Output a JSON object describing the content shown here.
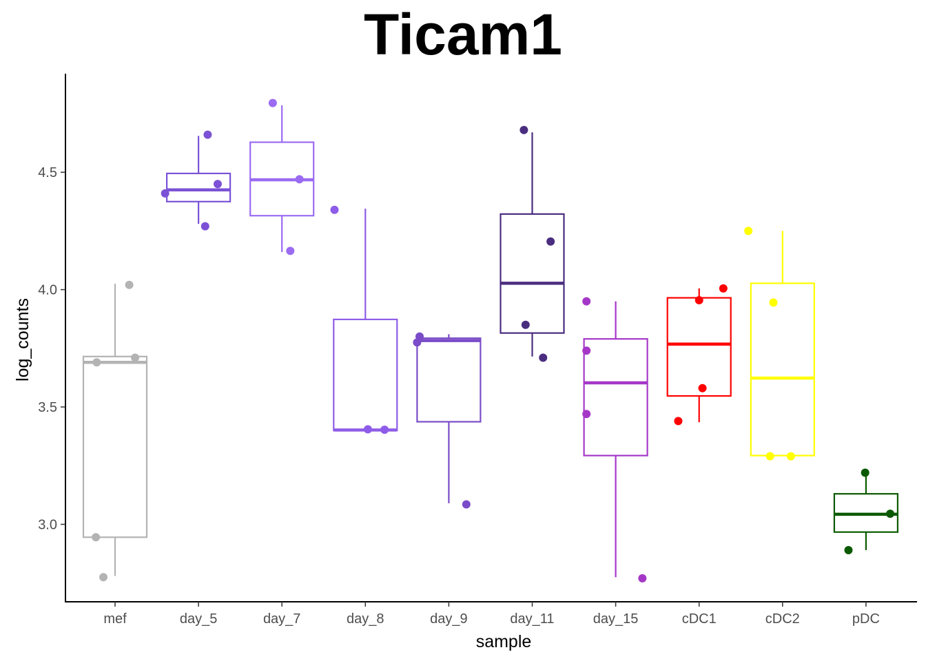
{
  "chart_data": {
    "type": "box",
    "title": "Ticam1",
    "xlabel": "sample",
    "ylabel": "log_counts",
    "ylim": [
      2.67,
      4.92
    ],
    "yticks": [
      3.0,
      3.5,
      4.0,
      4.5
    ],
    "ytick_labels": [
      "3.0",
      "3.5",
      "4.0",
      "4.5"
    ],
    "grid": false,
    "legend": "none",
    "categories": [
      "mef",
      "day_5",
      "day_7",
      "day_8",
      "day_9",
      "day_11",
      "day_15",
      "cDC1",
      "cDC2",
      "pDC"
    ],
    "groups": [
      {
        "name": "mef",
        "color": "#b3b3b3",
        "box": {
          "lower_whisker": 2.78,
          "q1": 2.945,
          "median": 3.69,
          "q3": 3.715,
          "upper_whisker": 4.025
        },
        "points": [
          {
            "x": -0.23,
            "y": 2.945
          },
          {
            "x": -0.14,
            "y": 2.775
          },
          {
            "x": -0.22,
            "y": 3.69
          },
          {
            "x": 0.17,
            "y": 4.02
          },
          {
            "x": 0.24,
            "y": 3.71
          }
        ]
      },
      {
        "name": "day_5",
        "color": "#7b52d6",
        "box": {
          "lower_whisker": 4.28,
          "q1": 4.375,
          "median": 4.425,
          "q3": 4.495,
          "upper_whisker": 4.655
        },
        "points": [
          {
            "x": -0.4,
            "y": 4.41
          },
          {
            "x": 0.11,
            "y": 4.66
          },
          {
            "x": 0.23,
            "y": 4.45
          },
          {
            "x": 0.08,
            "y": 4.27
          }
        ]
      },
      {
        "name": "day_7",
        "color": "#9b6bf2",
        "box": {
          "lower_whisker": 4.16,
          "q1": 4.315,
          "median": 4.468,
          "q3": 4.628,
          "upper_whisker": 4.785
        },
        "points": [
          {
            "x": -0.11,
            "y": 4.795
          },
          {
            "x": 0.21,
            "y": 4.47
          },
          {
            "x": 0.1,
            "y": 4.165
          }
        ]
      },
      {
        "name": "day_8",
        "color": "#8e5ce8",
        "box": {
          "lower_whisker": 3.4,
          "q1": 3.4,
          "median": 3.402,
          "q3": 3.873,
          "upper_whisker": 4.345
        },
        "points": [
          {
            "x": -0.37,
            "y": 4.34
          },
          {
            "x": 0.03,
            "y": 3.405
          },
          {
            "x": 0.23,
            "y": 3.403
          }
        ]
      },
      {
        "name": "day_9",
        "color": "#7a4cc8",
        "box": {
          "lower_whisker": 3.09,
          "q1": 3.437,
          "median": 3.783,
          "q3": 3.793,
          "upper_whisker": 3.81
        },
        "points": [
          {
            "x": -0.38,
            "y": 3.775
          },
          {
            "x": -0.35,
            "y": 3.8
          },
          {
            "x": 0.21,
            "y": 3.085
          }
        ]
      },
      {
        "name": "day_11",
        "color": "#4a2d7f",
        "box": {
          "lower_whisker": 3.715,
          "q1": 3.815,
          "median": 4.027,
          "q3": 4.322,
          "upper_whisker": 4.67
        },
        "points": [
          {
            "x": -0.1,
            "y": 4.68
          },
          {
            "x": 0.22,
            "y": 4.205
          },
          {
            "x": -0.08,
            "y": 3.85
          },
          {
            "x": 0.13,
            "y": 3.71
          }
        ]
      },
      {
        "name": "day_15",
        "color": "#a537c8",
        "box": {
          "lower_whisker": 2.775,
          "q1": 3.293,
          "median": 3.603,
          "q3": 3.79,
          "upper_whisker": 3.95
        },
        "points": [
          {
            "x": -0.35,
            "y": 3.95
          },
          {
            "x": -0.35,
            "y": 3.74
          },
          {
            "x": -0.35,
            "y": 3.47
          },
          {
            "x": 0.32,
            "y": 2.77
          }
        ]
      },
      {
        "name": "cDC1",
        "color": "#ff0000",
        "box": {
          "lower_whisker": 3.435,
          "q1": 3.547,
          "median": 3.768,
          "q3": 3.965,
          "upper_whisker": 4.005
        },
        "points": [
          {
            "x": 0.0,
            "y": 3.955
          },
          {
            "x": 0.29,
            "y": 4.005
          },
          {
            "x": 0.04,
            "y": 3.58
          },
          {
            "x": -0.25,
            "y": 3.44
          }
        ]
      },
      {
        "name": "cDC2",
        "color": "#ffff00",
        "box": {
          "lower_whisker": 3.293,
          "q1": 3.293,
          "median": 3.623,
          "q3": 4.027,
          "upper_whisker": 4.25
        },
        "points": [
          {
            "x": -0.41,
            "y": 4.25
          },
          {
            "x": -0.11,
            "y": 3.945
          },
          {
            "x": -0.15,
            "y": 3.29
          },
          {
            "x": 0.1,
            "y": 3.29
          }
        ]
      },
      {
        "name": "pDC",
        "color": "#0b5a00",
        "box": {
          "lower_whisker": 2.89,
          "q1": 2.967,
          "median": 3.043,
          "q3": 3.13,
          "upper_whisker": 3.22
        },
        "points": [
          {
            "x": -0.01,
            "y": 3.22
          },
          {
            "x": 0.29,
            "y": 3.045
          },
          {
            "x": -0.21,
            "y": 2.89
          }
        ]
      }
    ]
  }
}
